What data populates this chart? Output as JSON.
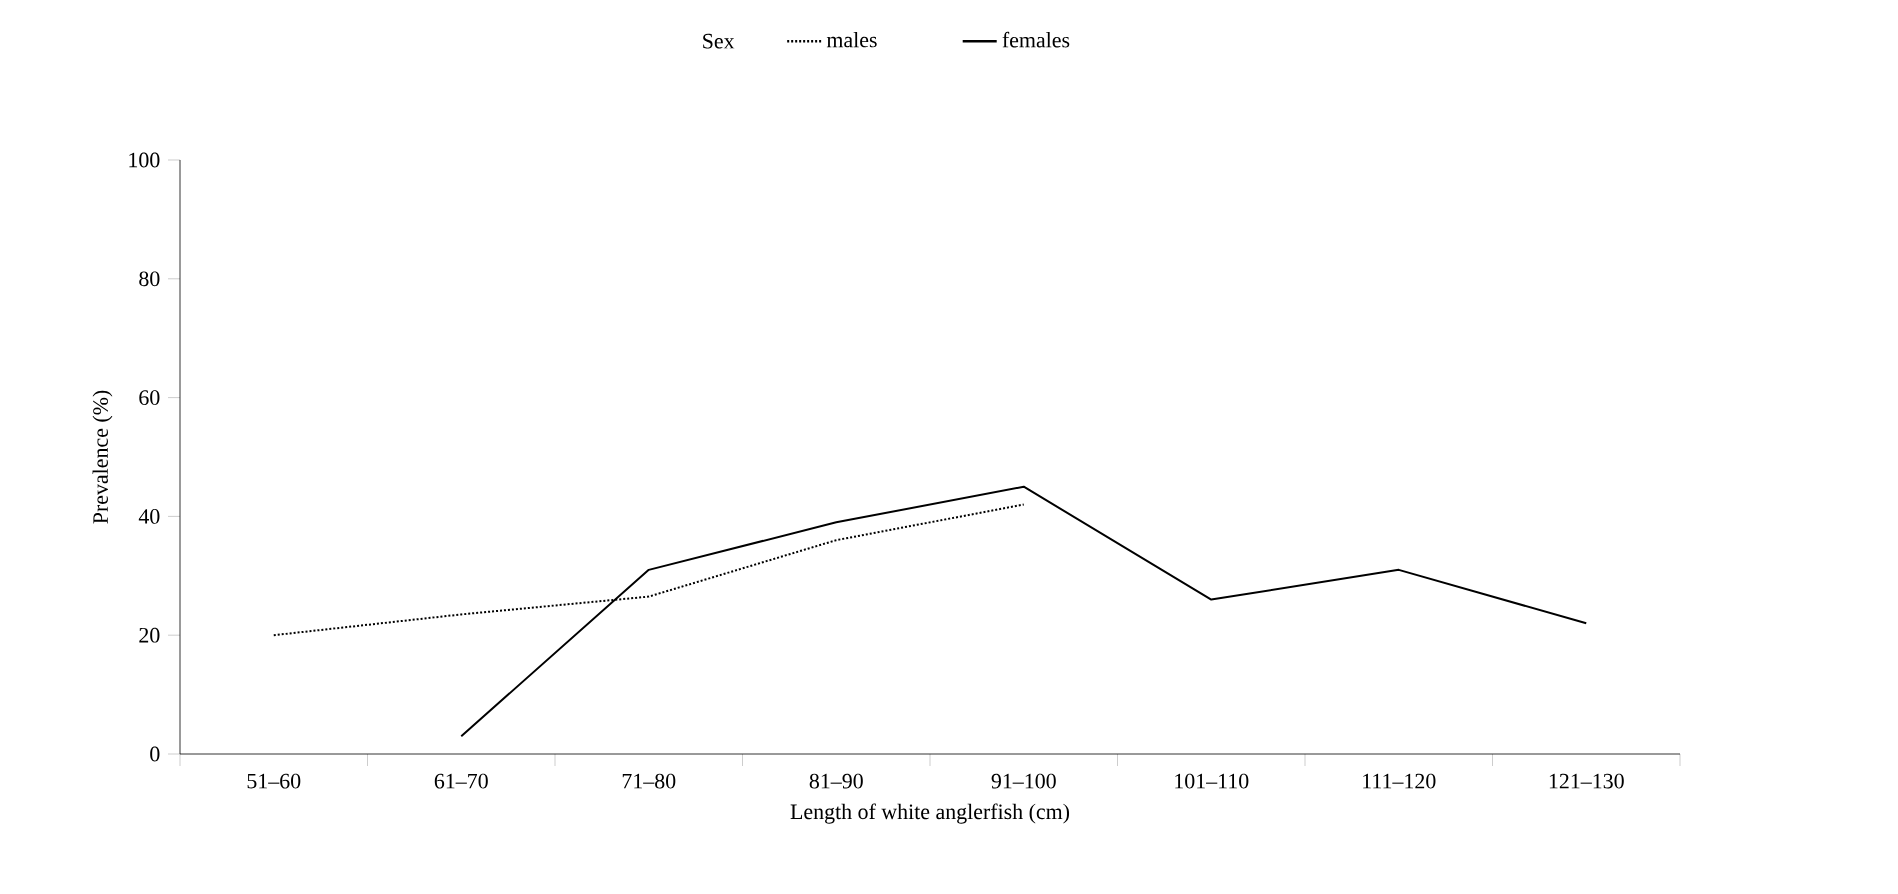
{
  "chart_data": {
    "type": "line",
    "xlabel": "Length of white anglerfish (cm)",
    "ylabel": "Prevalence (%)",
    "legend_title": "Sex",
    "legend": "top",
    "categories": [
      "51–60",
      "61–70",
      "71–80",
      "81–90",
      "91–100",
      "101–110",
      "111–120",
      "121–130"
    ],
    "ylim": [
      0,
      100
    ],
    "yticks": [
      0,
      20,
      40,
      60,
      80,
      100
    ],
    "grid": false,
    "series": [
      {
        "name": "males",
        "color": "#000000",
        "line_style": "dotted",
        "values": [
          20,
          23.5,
          26.5,
          36,
          42,
          null,
          null,
          null
        ]
      },
      {
        "name": "females",
        "color": "#000000",
        "line_style": "solid",
        "values": [
          null,
          3,
          31,
          39,
          45,
          26,
          31,
          22
        ]
      }
    ]
  }
}
